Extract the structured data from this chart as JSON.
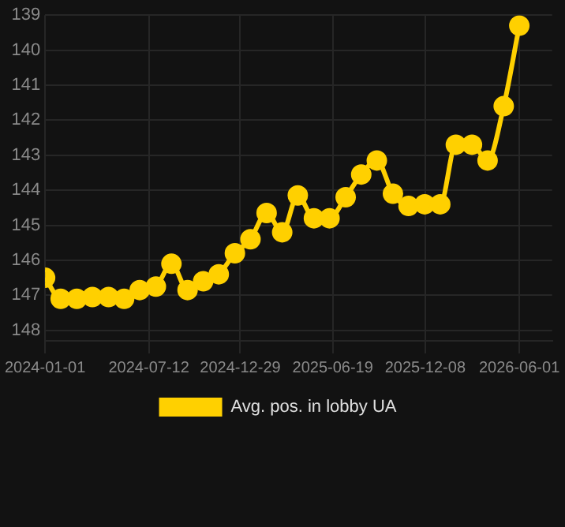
{
  "chart_data": {
    "type": "line",
    "x": [
      "2024-01-01",
      "2024-01-30",
      "2024-02-29",
      "2024-03-29",
      "2024-04-28",
      "2024-05-27",
      "2024-06-25",
      "2024-07-25",
      "2024-08-23",
      "2024-09-22",
      "2024-10-21",
      "2024-11-19",
      "2024-12-19",
      "2025-01-17",
      "2025-02-16",
      "2025-03-17",
      "2025-04-15",
      "2025-05-15",
      "2025-06-13",
      "2025-07-13",
      "2025-08-11",
      "2025-09-09",
      "2025-10-09",
      "2025-11-07",
      "2025-12-07",
      "2026-01-05",
      "2026-02-03",
      "2026-03-05",
      "2026-04-03",
      "2026-05-03",
      "2026-06-01"
    ],
    "series": [
      {
        "name": "Avg. pos. in lobby UA",
        "color": "#ffd000",
        "values": [
          146.5,
          147.1,
          147.1,
          147.05,
          147.05,
          147.1,
          146.85,
          146.75,
          146.1,
          146.85,
          146.6,
          146.4,
          145.8,
          145.4,
          144.65,
          145.2,
          144.15,
          144.8,
          144.8,
          144.2,
          143.55,
          143.15,
          144.1,
          144.45,
          144.4,
          144.4,
          142.7,
          142.7,
          143.15,
          141.6,
          139.3
        ]
      }
    ],
    "xlim": [
      "2024-01-01",
      "2026-08-01"
    ],
    "xticks": [
      "2024-01-01",
      "2024-07-12",
      "2024-12-29",
      "2025-06-19",
      "2025-12-08",
      "2026-06-01"
    ],
    "ylim": [
      148.3,
      139
    ],
    "yticks": [
      139,
      140,
      141,
      142,
      143,
      144,
      145,
      146,
      147,
      148
    ],
    "grid": true,
    "legend": "bottom",
    "marker": "circle",
    "line_style": "solid"
  }
}
